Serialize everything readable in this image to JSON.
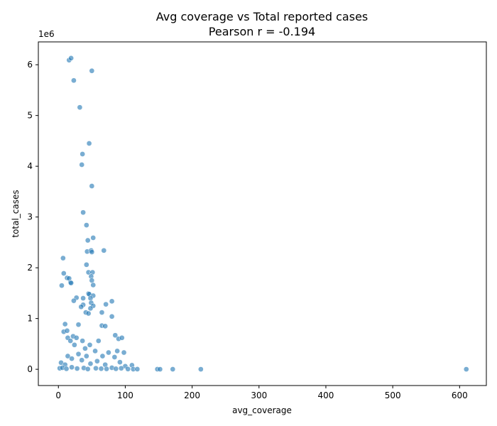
{
  "chart_data": {
    "type": "scatter",
    "title": "Avg coverage vs Total reported cases",
    "subtitle": "Pearson r = -0.194",
    "xlabel": "avg_coverage",
    "ylabel": "total_cases",
    "y_offset_label": "1e6",
    "xlim": [
      -30,
      640
    ],
    "ylim": [
      -320000,
      6450000
    ],
    "x_ticks": [
      0,
      100,
      200,
      300,
      400,
      500,
      600
    ],
    "x_tick_labels": [
      "0",
      "100",
      "200",
      "300",
      "400",
      "500",
      "600"
    ],
    "y_ticks": [
      0,
      1000000,
      2000000,
      3000000,
      4000000,
      5000000,
      6000000
    ],
    "y_tick_labels": [
      "0",
      "1",
      "2",
      "3",
      "4",
      "5",
      "6"
    ],
    "grid": false,
    "marker_color": "#1f77b4",
    "points": [
      [
        16,
        6090000
      ],
      [
        19,
        6130000
      ],
      [
        50,
        5880000
      ],
      [
        23,
        5690000
      ],
      [
        32,
        5160000
      ],
      [
        46,
        4450000
      ],
      [
        36,
        4240000
      ],
      [
        35,
        4030000
      ],
      [
        50,
        3610000
      ],
      [
        37,
        3090000
      ],
      [
        42,
        2840000
      ],
      [
        52,
        2590000
      ],
      [
        44,
        2540000
      ],
      [
        43,
        2320000
      ],
      [
        49,
        2340000
      ],
      [
        50,
        2310000
      ],
      [
        68,
        2340000
      ],
      [
        7,
        2190000
      ],
      [
        42,
        2060000
      ],
      [
        8,
        1890000
      ],
      [
        45,
        1910000
      ],
      [
        51,
        1910000
      ],
      [
        13,
        1800000
      ],
      [
        16,
        1790000
      ],
      [
        49,
        1830000
      ],
      [
        50,
        1750000
      ],
      [
        18,
        1710000
      ],
      [
        19,
        1700000
      ],
      [
        5,
        1650000
      ],
      [
        52,
        1660000
      ],
      [
        45,
        1490000
      ],
      [
        46,
        1480000
      ],
      [
        52,
        1450000
      ],
      [
        27,
        1410000
      ],
      [
        37,
        1400000
      ],
      [
        48,
        1400000
      ],
      [
        23,
        1350000
      ],
      [
        80,
        1340000
      ],
      [
        49,
        1310000
      ],
      [
        71,
        1280000
      ],
      [
        37,
        1270000
      ],
      [
        52,
        1250000
      ],
      [
        34,
        1230000
      ],
      [
        48,
        1200000
      ],
      [
        41,
        1120000
      ],
      [
        45,
        1100000
      ],
      [
        65,
        1120000
      ],
      [
        80,
        1040000
      ],
      [
        10,
        890000
      ],
      [
        30,
        880000
      ],
      [
        8,
        740000
      ],
      [
        13,
        760000
      ],
      [
        65,
        860000
      ],
      [
        70,
        850000
      ],
      [
        14,
        620000
      ],
      [
        22,
        650000
      ],
      [
        18,
        560000
      ],
      [
        27,
        620000
      ],
      [
        36,
        560000
      ],
      [
        47,
        480000
      ],
      [
        60,
        560000
      ],
      [
        85,
        670000
      ],
      [
        90,
        600000
      ],
      [
        95,
        620000
      ],
      [
        24,
        480000
      ],
      [
        40,
        410000
      ],
      [
        55,
        360000
      ],
      [
        75,
        330000
      ],
      [
        88,
        360000
      ],
      [
        98,
        330000
      ],
      [
        30,
        300000
      ],
      [
        42,
        260000
      ],
      [
        66,
        260000
      ],
      [
        84,
        240000
      ],
      [
        14,
        260000
      ],
      [
        20,
        210000
      ],
      [
        35,
        180000
      ],
      [
        58,
        160000
      ],
      [
        92,
        140000
      ],
      [
        110,
        80000
      ],
      [
        4,
        130000
      ],
      [
        10,
        90000
      ],
      [
        48,
        110000
      ],
      [
        70,
        90000
      ],
      [
        100,
        60000
      ],
      [
        2,
        20000
      ],
      [
        6,
        30000
      ],
      [
        12,
        10000
      ],
      [
        20,
        40000
      ],
      [
        28,
        15000
      ],
      [
        38,
        25000
      ],
      [
        44,
        5000
      ],
      [
        56,
        20000
      ],
      [
        64,
        12000
      ],
      [
        72,
        8000
      ],
      [
        80,
        30000
      ],
      [
        86,
        10000
      ],
      [
        94,
        20000
      ],
      [
        104,
        5000
      ],
      [
        112,
        2000
      ],
      [
        118,
        3000
      ],
      [
        148,
        2000
      ],
      [
        152,
        1000
      ],
      [
        171,
        1500
      ],
      [
        213,
        1000
      ],
      [
        610,
        1000
      ]
    ]
  }
}
